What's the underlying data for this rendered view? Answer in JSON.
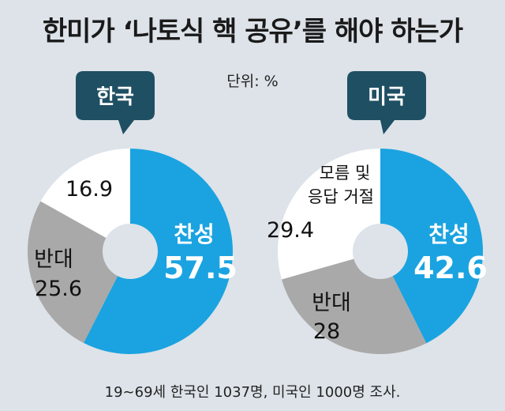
{
  "title": "한미가 ‘나토식 핵 공유’를 해야 하는가",
  "unit": "단위: %",
  "footnote": "19∼69세 한국인 1037명, 미국인 1000명 조사.",
  "colors": {
    "agree": "#1aa3e0",
    "oppose": "#a9a9a9",
    "unknown": "#ffffff",
    "badge": "#1f4f63"
  },
  "chart_data": [
    {
      "type": "pie",
      "badge": "한국",
      "slices": [
        {
          "label": "찬성",
          "value": 57.5,
          "value_text": "57.5"
        },
        {
          "label": "반대",
          "value": 25.6,
          "value_text": "25.6"
        },
        {
          "label": "",
          "value": 16.9,
          "value_text": "16.9"
        }
      ]
    },
    {
      "type": "pie",
      "badge": "미국",
      "slices": [
        {
          "label": "찬성",
          "value": 42.6,
          "value_text": "42.6"
        },
        {
          "label": "반대",
          "value": 28,
          "value_text": "28"
        },
        {
          "label_line1": "모름 및",
          "label_line2": "응답 거절",
          "value": 29.4,
          "value_text": "29.4"
        }
      ]
    }
  ]
}
